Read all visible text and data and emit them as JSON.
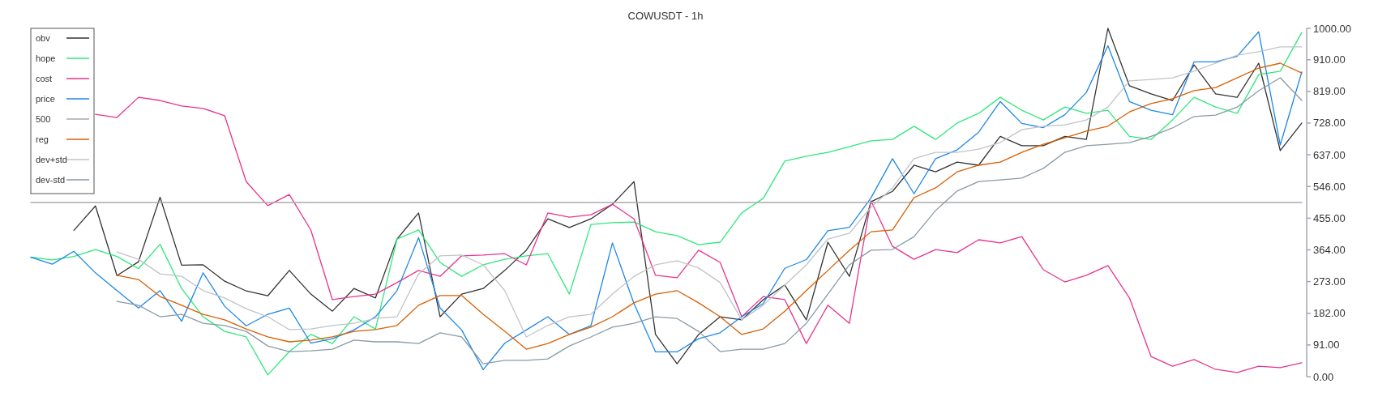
{
  "chart_data": {
    "type": "line",
    "title": "COWUSDT - 1h",
    "categories": [
      null,
      null,
      null,
      null,
      null,
      null,
      null,
      null,
      null,
      null,
      null,
      null,
      null,
      null,
      null,
      null,
      null,
      null,
      null,
      null,
      null,
      null,
      null,
      null,
      null,
      null,
      null,
      null,
      null,
      null,
      null,
      null,
      null,
      null,
      null,
      null,
      null,
      null,
      null,
      null,
      null,
      null,
      null,
      null,
      null,
      null,
      null,
      null,
      null,
      null,
      null,
      null,
      null,
      null,
      null,
      null,
      null,
      null,
      null,
      null
    ],
    "ylim": [
      0,
      1000
    ],
    "yticks": [
      {
        "value": 0,
        "label": "0.00"
      },
      {
        "value": 91,
        "label": "91.00"
      },
      {
        "value": 182,
        "label": "182.00"
      },
      {
        "value": 273,
        "label": "273.00"
      },
      {
        "value": 364,
        "label": "364.00"
      },
      {
        "value": 455,
        "label": "455.00"
      },
      {
        "value": 546,
        "label": "546.00"
      },
      {
        "value": 637,
        "label": "637.00"
      },
      {
        "value": 728,
        "label": "728.00"
      },
      {
        "value": 819,
        "label": "819.00"
      },
      {
        "value": 910,
        "label": "910.00"
      },
      {
        "value": 1000,
        "label": "1000.00"
      }
    ],
    "tick_labels": "y",
    "legend": "top left",
    "series": [
      {
        "name": "obv",
        "color": "#333333",
        "values": [
          null,
          null,
          420,
          490,
          290,
          330,
          515,
          320,
          321,
          274,
          246,
          232,
          305,
          237,
          188,
          253,
          226,
          395,
          470,
          172,
          237,
          253,
          305,
          363,
          453,
          428,
          453,
          495,
          560,
          121,
          37,
          121,
          172,
          163,
          221,
          263,
          163,
          386,
          288,
          502,
          532,
          607,
          588,
          616,
          607,
          690,
          663,
          663,
          690,
          681,
          1000,
          835,
          812,
          793,
          895,
          812,
          802,
          900,
          649,
          728
        ]
      },
      {
        "name": "hope",
        "color": "#2ee87a",
        "values": [
          343,
          335,
          345,
          365,
          345,
          310,
          380,
          253,
          172,
          130,
          114,
          5,
          72,
          121,
          95,
          172,
          137,
          395,
          421,
          328,
          288,
          321,
          337,
          347,
          353,
          237,
          437,
          442,
          444,
          416,
          405,
          379,
          386,
          470,
          512,
          619,
          633,
          644,
          660,
          677,
          681,
          719,
          681,
          728,
          756,
          802,
          765,
          737,
          774,
          756,
          765,
          690,
          681,
          737,
          802,
          774,
          756,
          867,
          877,
          988
        ]
      },
      {
        "name": "cost",
        "color": "#e8338f",
        "values": [
          null,
          null,
          null,
          753,
          744,
          802,
          793,
          777,
          770,
          749,
          560,
          491,
          523,
          421,
          221,
          230,
          237,
          270,
          305,
          288,
          347,
          349,
          353,
          321,
          470,
          458,
          465,
          495,
          453,
          291,
          284,
          363,
          328,
          172,
          230,
          221,
          95,
          205,
          153,
          505,
          374,
          337,
          365,
          356,
          393,
          384,
          402,
          307,
          272,
          291,
          319,
          226,
          58,
          30,
          49,
          21,
          12,
          30,
          26,
          40
        ]
      },
      {
        "name": "price",
        "color": "#1e88e5",
        "values": [
          343,
          323,
          360,
          298,
          247,
          197,
          247,
          159,
          298,
          202,
          146,
          179,
          197,
          96,
          109,
          134,
          172,
          247,
          399,
          197,
          134,
          20,
          96,
          134,
          172,
          121,
          146,
          384,
          210,
          71,
          71,
          109,
          126,
          172,
          210,
          311,
          336,
          419,
          429,
          513,
          626,
          525,
          626,
          651,
          702,
          790,
          727,
          715,
          752,
          816,
          950,
          790,
          765,
          752,
          904,
          904,
          920,
          990,
          665,
          875
        ]
      },
      {
        "name": "500",
        "color": "#aaaaaa",
        "values": [
          500,
          500,
          500,
          500,
          500,
          500,
          500,
          500,
          500,
          500,
          500,
          500,
          500,
          500,
          500,
          500,
          500,
          500,
          500,
          500,
          500,
          500,
          500,
          500,
          500,
          500,
          500,
          500,
          500,
          500,
          500,
          500,
          500,
          500,
          500,
          500,
          500,
          500,
          500,
          500,
          500,
          500,
          500,
          500,
          500,
          500,
          500,
          500,
          500,
          500,
          500,
          500,
          500,
          500,
          500,
          500,
          500,
          500,
          500,
          500
        ]
      },
      {
        "name": "reg",
        "color": "#d95f02",
        "values": [
          null,
          null,
          null,
          null,
          291,
          279,
          230,
          205,
          179,
          163,
          137,
          114,
          100,
          105,
          114,
          130,
          135,
          147,
          205,
          233,
          233,
          179,
          130,
          79,
          95,
          121,
          142,
          172,
          212,
          237,
          247,
          212,
          172,
          121,
          137,
          188,
          247,
          305,
          363,
          416,
          421,
          514,
          542,
          588,
          607,
          616,
          644,
          667,
          686,
          705,
          719,
          760,
          784,
          798,
          821,
          830,
          858,
          886,
          900,
          872
        ]
      },
      {
        "name": "dev+std",
        "color": "#c0c4c8",
        "values": [
          null,
          null,
          null,
          null,
          358,
          337,
          295,
          288,
          247,
          226,
          195,
          172,
          135,
          137,
          147,
          153,
          167,
          172,
          295,
          347,
          349,
          321,
          247,
          114,
          147,
          172,
          179,
          237,
          288,
          321,
          333,
          312,
          270,
          163,
          205,
          263,
          321,
          395,
          412,
          486,
          542,
          626,
          644,
          644,
          653,
          672,
          709,
          719,
          723,
          737,
          774,
          849,
          853,
          858,
          877,
          900,
          923,
          933,
          947,
          947
        ]
      },
      {
        "name": "dev-std",
        "color": "#8a9aa5",
        "values": [
          null,
          null,
          null,
          null,
          216,
          205,
          172,
          179,
          153,
          147,
          130,
          88,
          72,
          74,
          79,
          105,
          100,
          100,
          95,
          126,
          114,
          37,
          47,
          47,
          51,
          88,
          114,
          142,
          153,
          172,
          167,
          130,
          72,
          79,
          79,
          95,
          153,
          237,
          321,
          363,
          365,
          402,
          477,
          533,
          560,
          565,
          570,
          598,
          644,
          663,
          667,
          672,
          690,
          714,
          747,
          751,
          774,
          821,
          858,
          793
        ]
      }
    ]
  }
}
